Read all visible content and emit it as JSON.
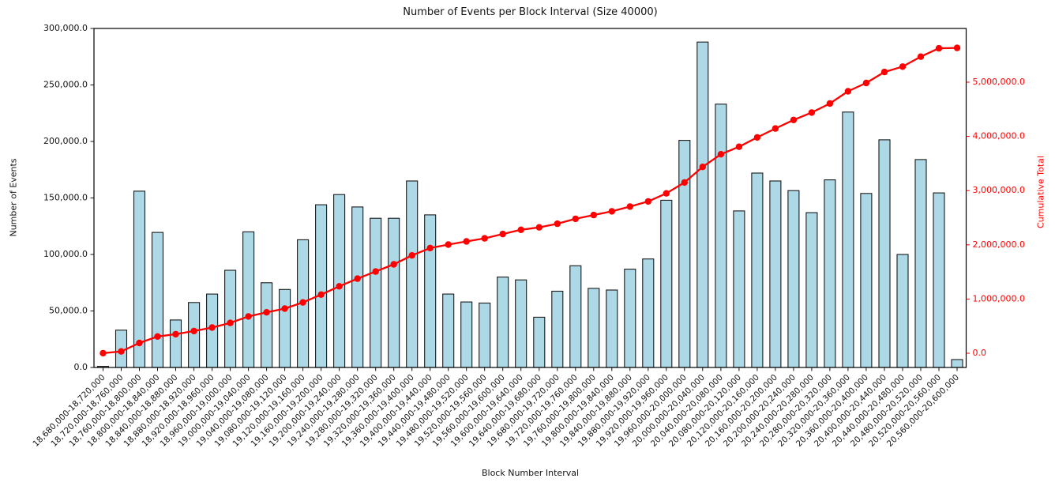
{
  "chart_data": {
    "type": "bar",
    "combo": "bar+line",
    "title": "Number of Events per Block Interval (Size 40000)",
    "xlabel": "Block Number Interval",
    "ylabel_left": "Number of Events",
    "ylabel_right": "Cumulative Total",
    "grid": false,
    "legend": "none",
    "bar_color": "#ADD8E6",
    "bar_edge_color": "#1a1a1a",
    "line_color": "#ff0000",
    "marker": "o",
    "axis_text_color": "#141414",
    "right_axis_text_color": "#ff0000",
    "categories": [
      "18,680,000-18,720,000",
      "18,720,000-18,760,000",
      "18,760,000-18,800,000",
      "18,800,000-18,840,000",
      "18,840,000-18,880,000",
      "18,880,000-18,920,000",
      "18,920,000-18,960,000",
      "18,960,000-19,000,000",
      "19,000,000-19,040,000",
      "19,040,000-19,080,000",
      "19,080,000-19,120,000",
      "19,120,000-19,160,000",
      "19,160,000-19,200,000",
      "19,200,000-19,240,000",
      "19,240,000-19,280,000",
      "19,280,000-19,320,000",
      "19,320,000-19,360,000",
      "19,360,000-19,400,000",
      "19,400,000-19,440,000",
      "19,440,000-19,480,000",
      "19,480,000-19,520,000",
      "19,520,000-19,560,000",
      "19,560,000-19,600,000",
      "19,600,000-19,640,000",
      "19,640,000-19,680,000",
      "19,680,000-19,720,000",
      "19,720,000-19,760,000",
      "19,760,000-19,800,000",
      "19,800,000-19,840,000",
      "19,840,000-19,880,000",
      "19,880,000-19,920,000",
      "19,920,000-19,960,000",
      "19,960,000-20,000,000",
      "20,000,000-20,040,000",
      "20,040,000-20,080,000",
      "20,080,000-20,120,000",
      "20,120,000-20,160,000",
      "20,160,000-20,200,000",
      "20,200,000-20,240,000",
      "20,240,000-20,280,000",
      "20,280,000-20,320,000",
      "20,320,000-20,360,000",
      "20,360,000-20,400,000",
      "20,400,000-20,440,000",
      "20,440,000-20,480,000",
      "20,480,000-20,520,000",
      "20,520,000-20,560,000",
      "20,560,000-20,600,000"
    ],
    "series": [
      {
        "name": "Number of Events",
        "type": "bar",
        "values": [
          1000,
          33000,
          156000,
          119500,
          42000,
          57500,
          65000,
          86000,
          120000,
          75000,
          69000,
          113000,
          144000,
          153000,
          142000,
          132000,
          132000,
          165000,
          135000,
          65000,
          58000,
          57000,
          80000,
          77500,
          44500,
          67500,
          90000,
          70000,
          68500,
          87000,
          96000,
          148000,
          201000,
          288000,
          233000,
          138500,
          172000,
          165000,
          156500,
          137000,
          166000,
          226000,
          154000,
          201500,
          100000,
          184000,
          154500,
          7000
        ]
      },
      {
        "name": "Cumulative Total",
        "type": "line",
        "values": [
          1000,
          34000,
          190000,
          309500,
          351500,
          409000,
          474000,
          560000,
          680000,
          755000,
          824000,
          937000,
          1081000,
          1234000,
          1376000,
          1508000,
          1640000,
          1805000,
          1940000,
          2005000,
          2063000,
          2120000,
          2200000,
          2277500,
          2322000,
          2389500,
          2479500,
          2549500,
          2618000,
          2705000,
          2801000,
          2949000,
          3150000,
          3438000,
          3671000,
          3809500,
          3981500,
          4146500,
          4303000,
          4440000,
          4606000,
          4832000,
          4986000,
          5187500,
          5287500,
          5471500,
          5626000,
          5633000
        ]
      }
    ],
    "left_axis": {
      "min": 0,
      "max": 300000,
      "tick_step": 50000,
      "tick_labels": [
        "0.0",
        "50,000.0",
        "100,000.0",
        "150,000.0",
        "200,000.0",
        "250,000.0",
        "300,000.0"
      ]
    },
    "right_axis": {
      "tick_values": [
        0,
        1000000,
        2000000,
        3000000,
        4000000,
        5000000
      ],
      "tick_labels": [
        "0.0",
        "1,000,000.0",
        "2,000,000.0",
        "3,000,000.0",
        "4,000,000.0",
        "5,000,000.0"
      ]
    }
  }
}
